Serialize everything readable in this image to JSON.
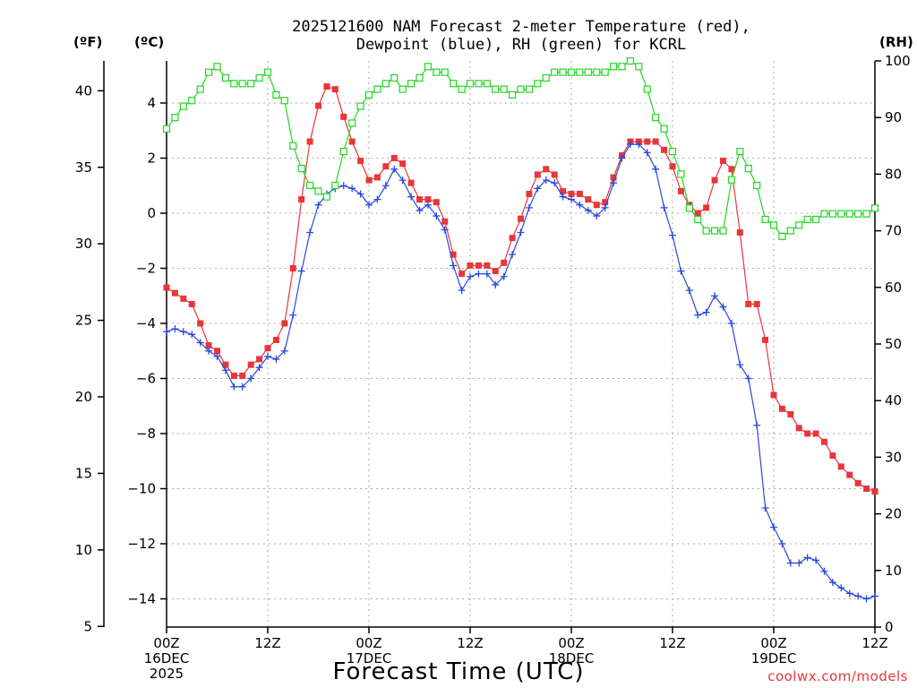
{
  "chart_data": {
    "type": "line",
    "title": [
      "2025121600 NAM Forecast 2-meter Temperature (red),",
      "Dewpoint (blue), RH (green) for KCRL"
    ],
    "xlabel": "Forecast Time (UTC)",
    "credit": "coolwx.com/models",
    "units": {
      "fahrenheit": "(ºF)",
      "celsius": "(ºC)",
      "rh": "(RH)"
    },
    "x_ticks": [
      {
        "hour": 0,
        "lines": [
          "00Z",
          "16DEC",
          "2025"
        ]
      },
      {
        "hour": 12,
        "lines": [
          "12Z"
        ]
      },
      {
        "hour": 24,
        "lines": [
          "00Z",
          "17DEC"
        ]
      },
      {
        "hour": 36,
        "lines": [
          "12Z"
        ]
      },
      {
        "hour": 48,
        "lines": [
          "00Z",
          "18DEC"
        ]
      },
      {
        "hour": 60,
        "lines": [
          "12Z"
        ]
      },
      {
        "hour": 72,
        "lines": [
          "00Z",
          "19DEC"
        ]
      },
      {
        "hour": 84,
        "lines": [
          "12Z"
        ]
      }
    ],
    "xlim": [
      0,
      84
    ],
    "celsius_ticks": [
      "4",
      "2",
      "0",
      "−2",
      "−4",
      "−6",
      "−8",
      "−10",
      "−12",
      "−14"
    ],
    "celsius_tick_values": [
      4,
      2,
      0,
      -2,
      -4,
      -6,
      -8,
      -10,
      -12,
      -14
    ],
    "fahrenheit_ticks": [
      "40",
      "35",
      "30",
      "25",
      "20",
      "15",
      "10",
      "5"
    ],
    "fahrenheit_tick_values": [
      40,
      35,
      30,
      25,
      20,
      15,
      10,
      5
    ],
    "rh_ticks": [
      "100",
      "90",
      "80",
      "70",
      "60",
      "50",
      "40",
      "30",
      "20",
      "10",
      "0"
    ],
    "rh_tick_values": [
      100,
      90,
      80,
      70,
      60,
      50,
      40,
      30,
      20,
      10,
      0
    ],
    "temp_ylim_c": [
      -15,
      5.5
    ],
    "rh_ylim": [
      0,
      100
    ],
    "series": [
      {
        "name": "Temperature",
        "color": "#e8363a",
        "marker": "square",
        "hours": [
          0,
          1,
          2,
          3,
          4,
          5,
          6,
          7,
          8,
          9,
          10,
          11,
          12,
          13,
          14,
          15,
          16,
          17,
          18,
          19,
          20,
          21,
          22,
          23,
          24,
          25,
          26,
          27,
          28,
          29,
          30,
          31,
          32,
          33,
          34,
          35,
          36,
          37,
          38,
          39,
          40,
          41,
          42,
          43,
          44,
          45,
          46,
          47,
          48,
          49,
          50,
          51,
          52,
          53,
          54,
          55,
          56,
          57,
          58,
          59,
          60,
          61,
          62,
          63,
          64,
          65,
          66,
          67,
          68,
          69,
          70,
          71,
          72,
          73,
          74,
          75,
          76,
          77,
          78,
          79,
          80,
          81,
          82,
          83,
          84
        ],
        "values_c": [
          -2.7,
          -2.9,
          -3.1,
          -3.3,
          -4.0,
          -4.8,
          -5.0,
          -5.5,
          -5.9,
          -5.9,
          -5.5,
          -5.3,
          -4.9,
          -4.6,
          -4.0,
          -2.0,
          0.5,
          2.6,
          3.9,
          4.6,
          4.5,
          3.5,
          2.6,
          1.9,
          1.2,
          1.3,
          1.7,
          2.0,
          1.8,
          1.1,
          0.5,
          0.5,
          0.4,
          -0.3,
          -1.5,
          -2.2,
          -1.9,
          -1.9,
          -1.9,
          -2.1,
          -1.8,
          -0.9,
          -0.2,
          0.7,
          1.4,
          1.6,
          1.4,
          0.8,
          0.7,
          0.7,
          0.5,
          0.3,
          0.4,
          1.3,
          2.1,
          2.6,
          2.6,
          2.6,
          2.6,
          2.3,
          1.7,
          0.8,
          0.3,
          0.0,
          0.2,
          1.2,
          1.9,
          1.6,
          -0.7,
          -3.3,
          -3.3,
          -4.6,
          -6.6,
          -7.1,
          -7.3,
          -7.8,
          -8.0,
          -8.0,
          -8.3,
          -8.8,
          -9.2,
          -9.5,
          -9.8,
          -10.0,
          -10.1
        ]
      },
      {
        "name": "Dewpoint",
        "color": "#2848e0",
        "marker": "plus",
        "hours": [
          0,
          1,
          2,
          3,
          4,
          5,
          6,
          7,
          8,
          9,
          10,
          11,
          12,
          13,
          14,
          15,
          16,
          17,
          18,
          19,
          20,
          21,
          22,
          23,
          24,
          25,
          26,
          27,
          28,
          29,
          30,
          31,
          32,
          33,
          34,
          35,
          36,
          37,
          38,
          39,
          40,
          41,
          42,
          43,
          44,
          45,
          46,
          47,
          48,
          49,
          50,
          51,
          52,
          53,
          54,
          55,
          56,
          57,
          58,
          59,
          60,
          61,
          62,
          63,
          64,
          65,
          66,
          67,
          68,
          69,
          70,
          71,
          72,
          73,
          74,
          75,
          76,
          77,
          78,
          79,
          80,
          81,
          82,
          83,
          84
        ],
        "values_c": [
          -4.3,
          -4.2,
          -4.3,
          -4.4,
          -4.7,
          -5.0,
          -5.2,
          -5.7,
          -6.3,
          -6.3,
          -6.0,
          -5.6,
          -5.2,
          -5.3,
          -5.0,
          -3.7,
          -2.1,
          -0.7,
          0.3,
          0.7,
          0.9,
          1.0,
          0.9,
          0.7,
          0.3,
          0.5,
          1.0,
          1.6,
          1.2,
          0.6,
          0.1,
          0.3,
          -0.1,
          -0.6,
          -1.9,
          -2.8,
          -2.3,
          -2.2,
          -2.2,
          -2.6,
          -2.3,
          -1.5,
          -0.7,
          0.2,
          0.9,
          1.2,
          1.1,
          0.6,
          0.5,
          0.3,
          0.1,
          -0.1,
          0.2,
          1.1,
          2.0,
          2.5,
          2.5,
          2.2,
          1.6,
          0.2,
          -0.8,
          -2.1,
          -2.8,
          -3.7,
          -3.6,
          -3.0,
          -3.4,
          -4.0,
          -5.5,
          -6.0,
          -7.7,
          -10.7,
          -11.4,
          -12.0,
          -12.7,
          -12.7,
          -12.5,
          -12.6,
          -13.0,
          -13.4,
          -13.6,
          -13.8,
          -13.9,
          -14.0,
          -13.9
        ]
      },
      {
        "name": "RH",
        "color": "#22d622",
        "marker": "open-square",
        "hours": [
          0,
          1,
          2,
          3,
          4,
          5,
          6,
          7,
          8,
          9,
          10,
          11,
          12,
          13,
          14,
          15,
          16,
          17,
          18,
          19,
          20,
          21,
          22,
          23,
          24,
          25,
          26,
          27,
          28,
          29,
          30,
          31,
          32,
          33,
          34,
          35,
          36,
          37,
          38,
          39,
          40,
          41,
          42,
          43,
          44,
          45,
          46,
          47,
          48,
          49,
          50,
          51,
          52,
          53,
          54,
          55,
          56,
          57,
          58,
          59,
          60,
          61,
          62,
          63,
          64,
          65,
          66,
          67,
          68,
          69,
          70,
          71,
          72,
          73,
          74,
          75,
          76,
          77,
          78,
          79,
          80,
          81,
          82,
          83,
          84
        ],
        "values_rh": [
          88,
          90,
          92,
          93,
          95,
          98,
          99,
          97,
          96,
          96,
          96,
          97,
          98,
          94,
          93,
          85,
          81,
          78,
          77,
          76,
          78,
          84,
          89,
          92,
          94,
          95,
          96,
          97,
          95,
          96,
          97,
          99,
          98,
          98,
          96,
          95,
          96,
          96,
          96,
          95,
          95,
          94,
          95,
          95,
          96,
          97,
          98,
          98,
          98,
          98,
          98,
          98,
          98,
          99,
          99,
          100,
          99,
          95,
          90,
          88,
          84,
          80,
          74,
          72,
          70,
          70,
          70,
          79,
          84,
          81,
          78,
          72,
          71,
          69,
          70,
          71,
          72,
          72,
          73,
          73,
          73,
          73,
          73,
          73,
          74
        ]
      }
    ]
  }
}
